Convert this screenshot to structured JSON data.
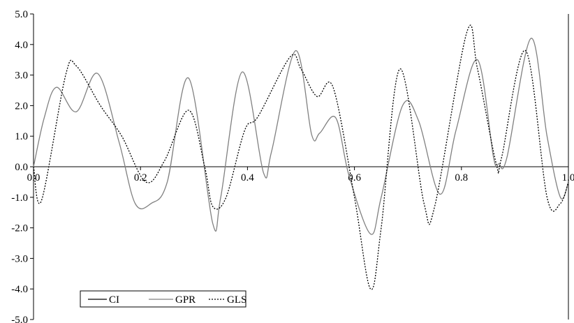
{
  "chart_data": {
    "type": "line",
    "title": "",
    "xlabel": "",
    "ylabel": "",
    "xlim": [
      0.0,
      1.0
    ],
    "ylim": [
      -5.0,
      5.0
    ],
    "x_ticks": [
      "0.0",
      "0.2",
      "0.4",
      "0.6",
      "0.8",
      "1.0"
    ],
    "y_ticks": [
      "5.0",
      "4.0",
      "3.0",
      "2.0",
      "1.0",
      "0.0",
      "-1.0",
      "-2.0",
      "-3.0",
      "-4.0",
      "-5.0"
    ],
    "grid": false,
    "legend_position": "bottom-left",
    "series": [
      {
        "name": "CI",
        "color": "#000000",
        "style": "solid",
        "x": [],
        "y": []
      },
      {
        "name": "GPR",
        "color": "#808080",
        "style": "solid",
        "x": [
          0.0,
          0.02,
          0.043,
          0.08,
          0.12,
          0.16,
          0.19,
          0.22,
          0.25,
          0.29,
          0.335,
          0.35,
          0.39,
          0.43,
          0.445,
          0.49,
          0.52,
          0.535,
          0.565,
          0.59,
          0.63,
          0.65,
          0.69,
          0.72,
          0.76,
          0.79,
          0.83,
          0.86,
          0.87,
          0.885,
          0.93,
          0.96,
          0.985,
          1.0
        ],
        "y": [
          0.0,
          1.6,
          2.6,
          1.8,
          3.05,
          0.8,
          -1.2,
          -1.2,
          -0.5,
          2.9,
          -1.85,
          -1.0,
          3.1,
          -0.2,
          0.5,
          3.8,
          1.05,
          1.1,
          1.6,
          -0.3,
          -2.2,
          -1.0,
          2.0,
          1.5,
          -0.9,
          1.2,
          3.5,
          0.3,
          0.1,
          0.3,
          4.2,
          1.0,
          -1.0,
          -0.5
        ]
      },
      {
        "name": "GLS",
        "color": "#000000",
        "style": "dotted",
        "x": [
          0.0,
          0.015,
          0.06,
          0.08,
          0.125,
          0.165,
          0.21,
          0.245,
          0.29,
          0.32,
          0.335,
          0.36,
          0.395,
          0.42,
          0.48,
          0.5,
          0.53,
          0.56,
          0.6,
          0.63,
          0.65,
          0.685,
          0.73,
          0.75,
          0.81,
          0.83,
          0.865,
          0.875,
          0.92,
          0.96,
          0.985,
          1.0
        ],
        "y": [
          0.0,
          -1.1,
          3.0,
          3.3,
          2.0,
          1.0,
          -0.5,
          0.2,
          1.85,
          0.0,
          -1.3,
          -1.0,
          1.2,
          1.65,
          3.6,
          3.2,
          2.3,
          2.6,
          -1.0,
          -4.0,
          -2.0,
          3.2,
          -1.2,
          -1.3,
          4.4,
          3.2,
          0.1,
          0.3,
          3.8,
          -1.0,
          -1.2,
          -0.5
        ]
      }
    ]
  }
}
